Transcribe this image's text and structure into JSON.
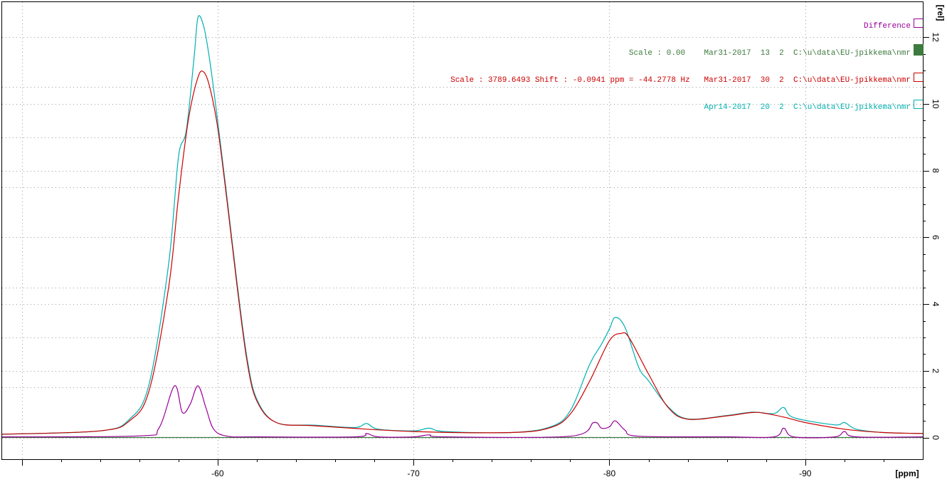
{
  "chart_data": {
    "type": "line",
    "xlabel": "[ppm]",
    "ylabel": "[rel]",
    "xlim": [
      -49,
      -96
    ],
    "ylim": [
      -0.65,
      13.05
    ],
    "x_ticks": [
      -60,
      -70,
      -80,
      -90
    ],
    "x_tick_labels": [
      "-60",
      "-70",
      "-80",
      "-90"
    ],
    "y_ticks": [
      0,
      2,
      4,
      6,
      8,
      10,
      12
    ],
    "y_tick_labels": [
      "0",
      "2",
      "4",
      "6",
      "8",
      "10",
      "12"
    ],
    "grid": true,
    "legend_position": "top-right",
    "series": [
      {
        "name": "Difference",
        "color": "#990099",
        "legend_text": "Difference",
        "x": [
          -49,
          -56,
          -57,
          -57.8,
          -58.2,
          -58.6,
          -59,
          -59.4,
          -59.8,
          -60.5,
          -62,
          -67,
          -67.6,
          -68.2,
          -70,
          -70.8,
          -71.6,
          -78,
          -79.2,
          -79.6,
          -80,
          -80.3,
          -80.8,
          -81.5,
          -86,
          -88.4,
          -88.9,
          -89.4,
          -91.5,
          -92,
          -92.6,
          -96
        ],
        "y": [
          0.02,
          0.05,
          0.28,
          1.55,
          0.75,
          1.0,
          1.55,
          0.9,
          0.25,
          0.04,
          0.02,
          0.02,
          0.12,
          0.02,
          0.02,
          0.08,
          0.02,
          0.04,
          0.45,
          0.28,
          0.32,
          0.5,
          0.22,
          0.04,
          0.02,
          0.02,
          0.28,
          0.02,
          0.02,
          0.18,
          0.02,
          0.02
        ]
      },
      {
        "name": "",
        "color": "#3d7a3d",
        "legend_text": "Scale : 0.00    Mar31-2017  13  2  C:\\u\\data\\EU-jpikkema\\nmr",
        "x": [
          -49,
          -96
        ],
        "y": [
          0,
          0
        ]
      },
      {
        "name": "",
        "color": "#cc0000",
        "legend_text": "Scale : 3789.6493 Shift : -0.0941 ppm = -44.2778 Hz   Mar31-2017  30  2  C:\\u\\data\\EU-jpikkema\\nmr",
        "x": [
          -49,
          -54,
          -55.5,
          -56.5,
          -57.5,
          -58,
          -58.5,
          -59,
          -59.3,
          -59.6,
          -60,
          -60.5,
          -61,
          -61.5,
          -62,
          -63,
          -65,
          -70,
          -75,
          -77,
          -78,
          -79,
          -80,
          -80.6,
          -81,
          -82,
          -83,
          -84,
          -86,
          -87.3,
          -88,
          -89,
          -90,
          -92,
          -94,
          -96
        ],
        "y": [
          0.1,
          0.2,
          0.5,
          1.4,
          4.5,
          7.2,
          9.5,
          10.8,
          10.95,
          10.5,
          9.3,
          7.0,
          4.5,
          2.3,
          1.1,
          0.45,
          0.35,
          0.18,
          0.15,
          0.3,
          0.7,
          1.7,
          2.9,
          3.12,
          3.0,
          1.9,
          0.9,
          0.55,
          0.65,
          0.75,
          0.72,
          0.6,
          0.45,
          0.25,
          0.15,
          0.12
        ]
      },
      {
        "name": "",
        "color": "#00b0b0",
        "legend_text": "Apr14-2017  20  2  C:\\u\\data\\EU-jpikkema\\nmr",
        "x": [
          -49,
          -54,
          -55.5,
          -56.5,
          -57.5,
          -58,
          -58.4,
          -58.8,
          -59,
          -59.3,
          -59.6,
          -60,
          -60.5,
          -61,
          -61.5,
          -62,
          -63,
          -65,
          -67,
          -67.6,
          -68.2,
          -70,
          -70.8,
          -71.6,
          -75,
          -77,
          -78,
          -79,
          -79.6,
          -80,
          -80.3,
          -80.8,
          -81.5,
          -82,
          -83,
          -84,
          -86,
          -87.3,
          -88.4,
          -88.9,
          -89.4,
          -91.5,
          -92,
          -92.6,
          -94,
          -96
        ],
        "y": [
          0.1,
          0.2,
          0.55,
          1.6,
          5.2,
          8.4,
          9.2,
          11.4,
          12.6,
          12.3,
          11.3,
          9.5,
          7.1,
          4.6,
          2.4,
          1.15,
          0.45,
          0.37,
          0.3,
          0.42,
          0.25,
          0.2,
          0.28,
          0.18,
          0.15,
          0.32,
          0.8,
          2.2,
          2.8,
          3.25,
          3.6,
          3.3,
          2.1,
          1.7,
          0.92,
          0.56,
          0.66,
          0.76,
          0.72,
          0.9,
          0.6,
          0.38,
          0.45,
          0.25,
          0.15,
          0.12
        ]
      }
    ]
  }
}
